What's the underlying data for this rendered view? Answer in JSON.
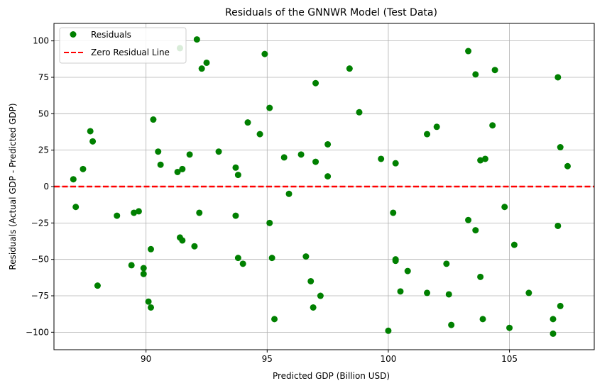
{
  "chart_data": {
    "type": "scatter",
    "title": "Residuals of the GNNWR Model (Test Data)",
    "xlabel": "Predicted GDP (Billion USD)",
    "ylabel": "Residuals (Actual GDP - Predicted GDP)",
    "xlim": [
      86.2,
      108.5
    ],
    "ylim": [
      -112,
      112
    ],
    "x_ticks": [
      90,
      95,
      100,
      105
    ],
    "y_ticks": [
      -100,
      -75,
      -50,
      -25,
      0,
      25,
      50,
      75,
      100
    ],
    "grid": true,
    "legend_position": "top-left",
    "colors": {
      "points": "#008000",
      "zero_line": "#ff0000"
    },
    "series": [
      {
        "name": "Residuals",
        "kind": "scatter",
        "points": [
          [
            87.0,
            5
          ],
          [
            87.1,
            -14
          ],
          [
            87.4,
            12
          ],
          [
            87.7,
            38
          ],
          [
            87.8,
            31
          ],
          [
            88.0,
            -68
          ],
          [
            88.8,
            -20
          ],
          [
            89.4,
            -54
          ],
          [
            89.5,
            -18
          ],
          [
            89.7,
            -17
          ],
          [
            89.9,
            -56
          ],
          [
            89.9,
            -60
          ],
          [
            90.1,
            -79
          ],
          [
            90.2,
            -43
          ],
          [
            90.2,
            -83
          ],
          [
            90.3,
            46
          ],
          [
            90.5,
            24
          ],
          [
            90.6,
            15
          ],
          [
            91.3,
            10
          ],
          [
            91.4,
            95
          ],
          [
            91.5,
            12
          ],
          [
            91.4,
            -35
          ],
          [
            91.5,
            -37
          ],
          [
            91.8,
            22
          ],
          [
            92.0,
            -41
          ],
          [
            92.1,
            101
          ],
          [
            92.2,
            -18
          ],
          [
            92.3,
            81
          ],
          [
            92.5,
            85
          ],
          [
            93.0,
            24
          ],
          [
            93.7,
            13
          ],
          [
            93.7,
            -20
          ],
          [
            93.8,
            8
          ],
          [
            93.8,
            -49
          ],
          [
            94.0,
            -53
          ],
          [
            94.2,
            44
          ],
          [
            94.7,
            36
          ],
          [
            94.9,
            91
          ],
          [
            95.1,
            -25
          ],
          [
            95.1,
            54
          ],
          [
            95.2,
            -49
          ],
          [
            95.3,
            -91
          ],
          [
            95.7,
            20
          ],
          [
            95.9,
            -5
          ],
          [
            96.4,
            22
          ],
          [
            96.6,
            -48
          ],
          [
            96.8,
            -65
          ],
          [
            96.9,
            -83
          ],
          [
            97.0,
            71
          ],
          [
            97.0,
            17
          ],
          [
            97.2,
            -75
          ],
          [
            97.5,
            7
          ],
          [
            97.5,
            29
          ],
          [
            98.4,
            81
          ],
          [
            98.8,
            51
          ],
          [
            99.7,
            19
          ],
          [
            100.0,
            -99
          ],
          [
            100.2,
            -18
          ],
          [
            100.3,
            -50
          ],
          [
            100.3,
            -51
          ],
          [
            100.3,
            16
          ],
          [
            100.5,
            -72
          ],
          [
            100.8,
            -58
          ],
          [
            101.6,
            36
          ],
          [
            101.6,
            -73
          ],
          [
            102.0,
            41
          ],
          [
            102.4,
            -53
          ],
          [
            102.5,
            -74
          ],
          [
            102.6,
            -95
          ],
          [
            103.3,
            93
          ],
          [
            103.3,
            -23
          ],
          [
            103.6,
            77
          ],
          [
            103.6,
            -30
          ],
          [
            103.8,
            -62
          ],
          [
            103.8,
            18
          ],
          [
            103.9,
            -91
          ],
          [
            104.0,
            19
          ],
          [
            104.3,
            42
          ],
          [
            104.4,
            80
          ],
          [
            104.8,
            -14
          ],
          [
            105.0,
            -97
          ],
          [
            105.2,
            -40
          ],
          [
            105.8,
            -73
          ],
          [
            106.8,
            -91
          ],
          [
            106.8,
            -101
          ],
          [
            107.0,
            75
          ],
          [
            107.0,
            -27
          ],
          [
            107.1,
            27
          ],
          [
            107.1,
            -82
          ],
          [
            107.4,
            14
          ]
        ]
      },
      {
        "name": "Zero Residual Line",
        "kind": "line",
        "y": 0
      }
    ]
  }
}
